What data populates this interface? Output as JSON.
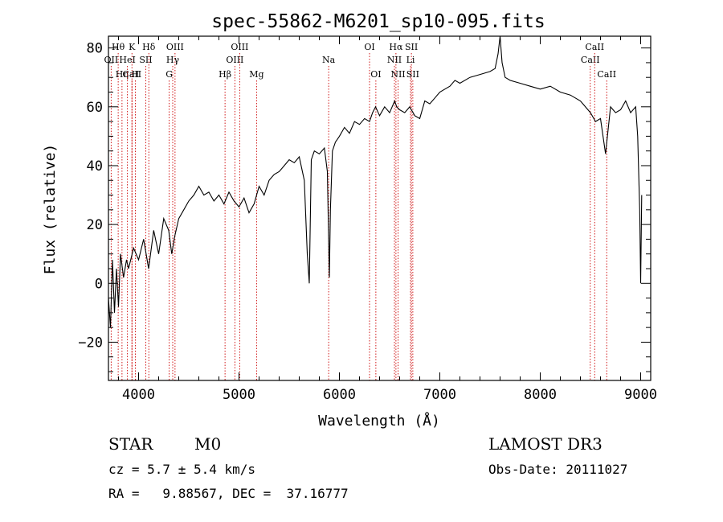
{
  "chart_data": {
    "type": "line",
    "title": "spec-55862-M6201_sp10-095.fits",
    "xlabel": "Wavelength (Å)",
    "ylabel": "Flux (relative)",
    "xlim": [
      3700,
      9100
    ],
    "ylim": [
      -33,
      84
    ],
    "x_ticks": [
      4000,
      5000,
      6000,
      7000,
      8000,
      9000
    ],
    "y_ticks": [
      -20,
      0,
      20,
      40,
      60,
      80
    ],
    "series": [
      {
        "name": "flux",
        "x": [
          3700,
          3720,
          3740,
          3760,
          3780,
          3800,
          3820,
          3850,
          3880,
          3900,
          3950,
          4000,
          4050,
          4100,
          4150,
          4200,
          4250,
          4300,
          4330,
          4360,
          4400,
          4450,
          4500,
          4550,
          4600,
          4650,
          4700,
          4750,
          4800,
          4850,
          4900,
          4950,
          5000,
          5050,
          5100,
          5150,
          5200,
          5250,
          5300,
          5350,
          5400,
          5450,
          5500,
          5550,
          5600,
          5650,
          5680,
          5700,
          5720,
          5750,
          5800,
          5850,
          5880,
          5900,
          5910,
          5930,
          5960,
          6000,
          6050,
          6100,
          6150,
          6200,
          6250,
          6300,
          6330,
          6360,
          6400,
          6450,
          6500,
          6550,
          6570,
          6600,
          6650,
          6700,
          6750,
          6800,
          6850,
          6900,
          6950,
          7000,
          7050,
          7100,
          7150,
          7200,
          7300,
          7400,
          7500,
          7550,
          7580,
          7600,
          7620,
          7650,
          7700,
          7800,
          7900,
          8000,
          8100,
          8200,
          8300,
          8400,
          8500,
          8550,
          8600,
          8650,
          8700,
          8750,
          8800,
          8850,
          8900,
          8950,
          8970,
          8990,
          9000,
          9010
        ],
        "y": [
          -5,
          -15,
          8,
          -10,
          5,
          -8,
          10,
          2,
          8,
          5,
          12,
          8,
          15,
          5,
          18,
          10,
          22,
          18,
          10,
          16,
          22,
          25,
          28,
          30,
          33,
          30,
          31,
          28,
          30,
          27,
          31,
          28,
          26,
          29,
          24,
          27,
          33,
          30,
          35,
          37,
          38,
          40,
          42,
          41,
          43,
          35,
          10,
          0,
          42,
          45,
          44,
          46,
          38,
          2,
          25,
          45,
          48,
          50,
          53,
          51,
          55,
          54,
          56,
          55,
          58,
          60,
          57,
          60,
          58,
          62,
          60,
          59,
          58,
          60,
          57,
          56,
          62,
          61,
          63,
          65,
          66,
          67,
          69,
          68,
          70,
          71,
          72,
          73,
          78,
          84,
          75,
          70,
          69,
          68,
          67,
          66,
          67,
          65,
          64,
          62,
          58,
          55,
          56,
          44,
          60,
          58,
          59,
          62,
          58,
          60,
          50,
          25,
          0,
          30
        ]
      }
    ],
    "line_markers": [
      {
        "label": "Hθ",
        "wavelength": 3797,
        "row": 1
      },
      {
        "label": "OII",
        "wavelength": 3727,
        "row": 2
      },
      {
        "label": "CaII",
        "wavelength": 3934,
        "row": 3
      },
      {
        "label": "Hη",
        "wavelength": 3835,
        "row": 3
      },
      {
        "label": "K",
        "wavelength": 3934,
        "row": 1
      },
      {
        "label": "H",
        "wavelength": 3968,
        "row": 3
      },
      {
        "label": "HeI",
        "wavelength": 3889,
        "row": 2
      },
      {
        "label": "SII",
        "wavelength": 4072,
        "row": 2
      },
      {
        "label": "Hδ",
        "wavelength": 4102,
        "row": 1
      },
      {
        "label": "OIII",
        "wavelength": 4363,
        "row": 1
      },
      {
        "label": "Hγ",
        "wavelength": 4340,
        "row": 2
      },
      {
        "label": "G",
        "wavelength": 4305,
        "row": 3
      },
      {
        "label": "Hβ",
        "wavelength": 4861,
        "row": 3
      },
      {
        "label": "OIII",
        "wavelength": 4959,
        "row": 2
      },
      {
        "label": "OIII",
        "wavelength": 5007,
        "row": 1
      },
      {
        "label": "Mg",
        "wavelength": 5175,
        "row": 3
      },
      {
        "label": "Na",
        "wavelength": 5893,
        "row": 2
      },
      {
        "label": "OI",
        "wavelength": 6300,
        "row": 1
      },
      {
        "label": "OI",
        "wavelength": 6363,
        "row": 3
      },
      {
        "label": "Hα",
        "wavelength": 6563,
        "row": 1
      },
      {
        "label": "NII",
        "wavelength": 6548,
        "row": 2
      },
      {
        "label": "NII",
        "wavelength": 6584,
        "row": 3
      },
      {
        "label": "SII",
        "wavelength": 6717,
        "row": 1
      },
      {
        "label": "Li",
        "wavelength": 6708,
        "row": 2
      },
      {
        "label": "SII",
        "wavelength": 6731,
        "row": 3
      },
      {
        "label": "CaII",
        "wavelength": 8498,
        "row": 2
      },
      {
        "label": "CaII",
        "wavelength": 8542,
        "row": 1
      },
      {
        "label": "CaII",
        "wavelength": 8662,
        "row": 3
      }
    ],
    "marker_color": "#cc0000"
  },
  "info": {
    "class_label": "STAR",
    "subclass": "M0",
    "survey": "LAMOST DR3",
    "velocity": "cz = 5.7 ± 5.4 km/s",
    "obs_date": "Obs-Date: 20111027",
    "coords": "RA =   9.88567, DEC =  37.16777"
  }
}
